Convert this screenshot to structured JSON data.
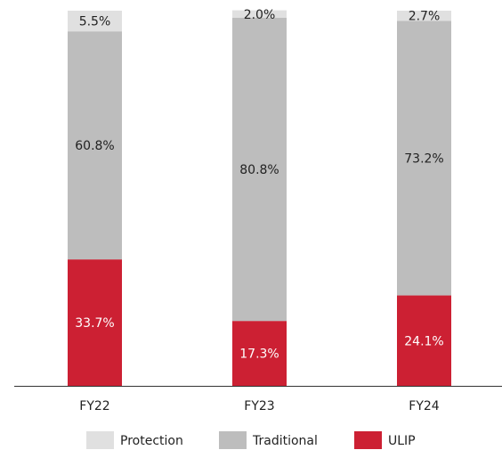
{
  "chart_data": {
    "type": "stacked_bar",
    "categories": [
      "FY22",
      "FY23",
      "FY24"
    ],
    "series": [
      {
        "name": "ULIP",
        "color": "#cc2033",
        "values": [
          33.7,
          17.3,
          24.1
        ],
        "value_labels": [
          "33.7%",
          "17.3%",
          "24.1%"
        ]
      },
      {
        "name": "Traditional",
        "color": "#bdbdbd",
        "values": [
          60.8,
          80.8,
          73.2
        ],
        "value_labels": [
          "60.8%",
          "80.8%",
          "73.2%"
        ]
      },
      {
        "name": "Protection",
        "color": "#e0e0e0",
        "values": [
          5.5,
          2.0,
          2.7
        ],
        "value_labels": [
          "5.5%",
          "2.0%",
          "2.7%"
        ]
      }
    ],
    "ylim": [
      0,
      100
    ],
    "legend": "bottom"
  }
}
